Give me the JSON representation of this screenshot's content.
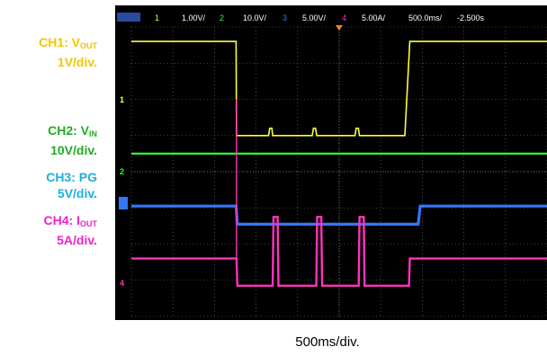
{
  "labels": {
    "ch1_name": "CH1: V",
    "ch1_sub": "OUT",
    "ch1_scale": "1V/div.",
    "ch2_name": "CH2: V",
    "ch2_sub": "IN",
    "ch2_scale": "10V/div.",
    "ch3_name": "CH3: PG",
    "ch3_scale": "5V/div.",
    "ch4_name": "CH4: I",
    "ch4_sub": "OUT",
    "ch4_scale": "5A/div."
  },
  "timebase_caption": "500ms/div.",
  "scope_header": {
    "ch1_num": "1",
    "ch1_scale": "1.00V/",
    "ch2_num": "2",
    "ch2_scale": "10.0V/",
    "ch3_num": "3",
    "ch3_scale": "5.00V/",
    "ch4_num": "4",
    "ch4_scale": "5.00A/",
    "timebase": "500.0ms/",
    "trigger_offset": "-2.500s"
  },
  "colors": {
    "ch1": "#ffff33",
    "ch2": "#33ff33",
    "ch3": "#3377ff",
    "ch4": "#ff33bb",
    "ch1_label": "#f5c400",
    "ch2_label": "#22aa22",
    "ch3_label": "#1ab0e0",
    "ch4_label": "#ee22cc",
    "grid": "#7a7a7a",
    "trigger": "#ff8800"
  },
  "chart_data": {
    "type": "line",
    "x_divisions": 10,
    "y_divisions": 8,
    "time_per_div_s": 0.5,
    "xlim_div": [
      0,
      10
    ],
    "ylim_div": [
      0,
      8
    ],
    "grid": true,
    "series": [
      {
        "name": "CH1: VOUT",
        "points_div": [
          [
            0,
            7.6
          ],
          [
            2.52,
            7.6
          ],
          [
            2.53,
            5.0
          ],
          [
            3.3,
            5.0
          ],
          [
            3.33,
            5.2
          ],
          [
            3.38,
            5.2
          ],
          [
            3.4,
            5.0
          ],
          [
            4.35,
            5.0
          ],
          [
            4.38,
            5.2
          ],
          [
            4.43,
            5.2
          ],
          [
            4.46,
            5.0
          ],
          [
            5.38,
            5.0
          ],
          [
            5.41,
            5.2
          ],
          [
            5.46,
            5.2
          ],
          [
            5.49,
            5.0
          ],
          [
            6.58,
            5.0
          ],
          [
            6.7,
            7.6
          ],
          [
            10,
            7.6
          ]
        ]
      },
      {
        "name": "CH2: VIN",
        "points_div": [
          [
            0,
            4.5
          ],
          [
            10,
            4.5
          ]
        ]
      },
      {
        "name": "CH3: PG",
        "points_div": [
          [
            0,
            3.05
          ],
          [
            2.52,
            3.05
          ],
          [
            2.55,
            2.55
          ],
          [
            6.9,
            2.55
          ],
          [
            6.95,
            3.05
          ],
          [
            10,
            3.05
          ]
        ]
      },
      {
        "name": "CH4: IOUT",
        "points_div": [
          [
            0,
            1.6
          ],
          [
            2.53,
            1.6
          ],
          [
            2.55,
            0.85
          ],
          [
            3.4,
            0.85
          ],
          [
            3.42,
            2.75
          ],
          [
            3.52,
            2.75
          ],
          [
            3.54,
            0.85
          ],
          [
            4.45,
            0.85
          ],
          [
            4.47,
            2.75
          ],
          [
            4.57,
            2.75
          ],
          [
            4.59,
            0.85
          ],
          [
            5.47,
            0.85
          ],
          [
            5.49,
            2.75
          ],
          [
            5.59,
            2.75
          ],
          [
            5.61,
            0.85
          ],
          [
            6.68,
            0.85
          ],
          [
            6.7,
            1.6
          ],
          [
            10,
            1.6
          ]
        ]
      }
    ],
    "ch4_spike_div": [
      2.53,
      6.0
    ]
  }
}
